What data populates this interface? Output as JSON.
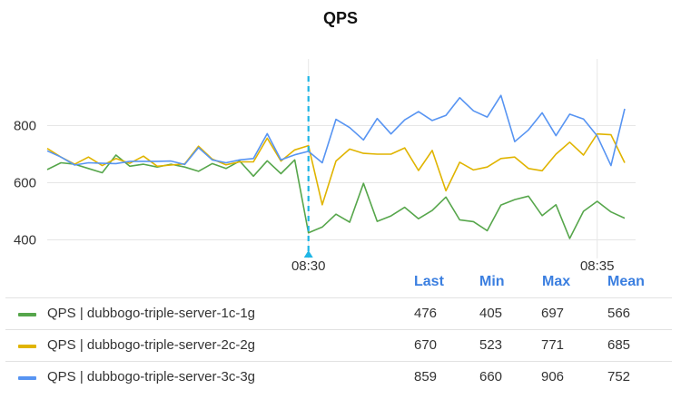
{
  "title": "QPS",
  "chart_data": {
    "type": "line",
    "title": "QPS",
    "xlabel": "",
    "ylabel": "",
    "x_ticks": [
      "08:30",
      "08:35"
    ],
    "y_ticks": [
      400,
      600,
      800
    ],
    "ylim": [
      335,
      970
    ],
    "grid": true,
    "marker_time": "08:30",
    "series": [
      {
        "name": "QPS | dubbogo-triple-server-1c-1g",
        "color": "#56a64b",
        "values": [
          646,
          670,
          665,
          650,
          635,
          697,
          658,
          665,
          655,
          665,
          655,
          640,
          667,
          650,
          676,
          623,
          677,
          632,
          680,
          425,
          445,
          490,
          462,
          598,
          465,
          484,
          514,
          474,
          503,
          550,
          470,
          464,
          432,
          522,
          541,
          553,
          485,
          523,
          405,
          500,
          535,
          498,
          476
        ]
      },
      {
        "name": "QPS | dubbogo-triple-server-2c-2g",
        "color": "#e0b400",
        "values": [
          720,
          690,
          665,
          690,
          660,
          685,
          668,
          693,
          658,
          662,
          666,
          728,
          683,
          663,
          673,
          673,
          756,
          676,
          715,
          730,
          523,
          676,
          718,
          703,
          700,
          700,
          722,
          643,
          713,
          572,
          672,
          645,
          655,
          685,
          690,
          650,
          642,
          700,
          742,
          697,
          771,
          768,
          670
        ]
      },
      {
        "name": "QPS | dubbogo-triple-server-3c-3g",
        "color": "#5794f2",
        "values": [
          712,
          690,
          662,
          670,
          668,
          667,
          675,
          675,
          675,
          676,
          664,
          723,
          680,
          670,
          680,
          685,
          772,
          680,
          698,
          710,
          670,
          822,
          793,
          750,
          825,
          771,
          820,
          849,
          818,
          836,
          898,
          852,
          830,
          906,
          744,
          785,
          845,
          765,
          840,
          823,
          764,
          660,
          859
        ]
      }
    ]
  },
  "legend": {
    "headers": [
      "Last",
      "Min",
      "Max",
      "Mean"
    ],
    "rows": [
      {
        "name": "QPS | dubbogo-triple-server-1c-1g",
        "color": "#56a64b",
        "last": "476",
        "min": "405",
        "max": "697",
        "mean": "566"
      },
      {
        "name": "QPS | dubbogo-triple-server-2c-2g",
        "color": "#e0b400",
        "last": "670",
        "min": "523",
        "max": "771",
        "mean": "685"
      },
      {
        "name": "QPS | dubbogo-triple-server-3c-3g",
        "color": "#5794f2",
        "last": "859",
        "min": "660",
        "max": "906",
        "mean": "752"
      }
    ]
  }
}
